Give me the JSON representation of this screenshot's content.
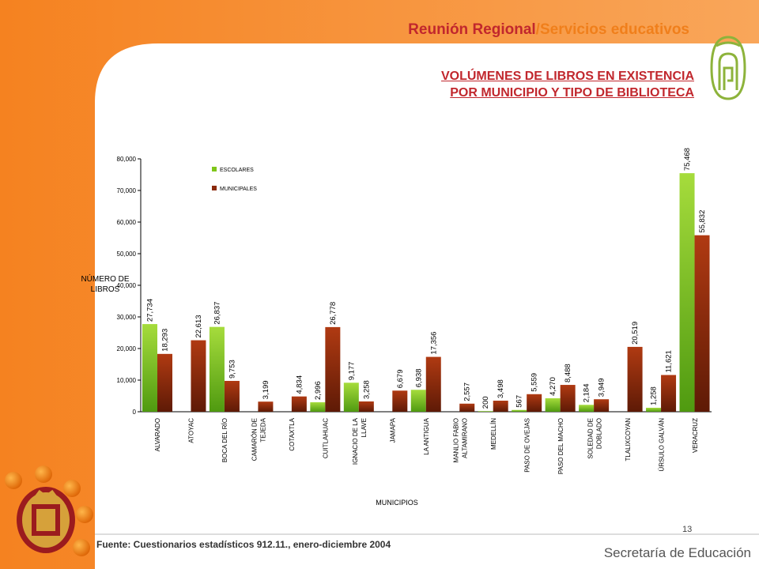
{
  "header": {
    "title_part1": "Reunión Regional",
    "title_sep": "/",
    "title_part2": "Servicios educativos"
  },
  "subtitle": {
    "line1": "VOLÚMENES DE LIBROS EN EXISTENCIA",
    "line2": "POR MUNICIPIO Y TIPO DE BIBLIOTECA"
  },
  "footer": {
    "source": "Fuente: Cuestionarios estadísticos 912.11., enero-diciembre 2004",
    "page_number": "13",
    "organization": "Secretaría de Educación"
  },
  "colors": {
    "brand_red": "#c1272d",
    "brand_orange": "#f07f1b",
    "series_escolares": "#7fc61a",
    "series_municipales": "#8b2a0d"
  },
  "chart_data": {
    "type": "bar",
    "ylabel": [
      "NÚMERO DE",
      "LIBROS"
    ],
    "xlabel": "MUNICIPIOS",
    "ylim": [
      0,
      80000
    ],
    "yticks": [
      "0",
      "10,000",
      "20,000",
      "30,000",
      "40,000",
      "50,000",
      "60,000",
      "70,000",
      "80,000"
    ],
    "legend_position": "top-left",
    "categories": [
      [
        "ALVARADO"
      ],
      [
        "ATOYAC"
      ],
      [
        "BOCA DEL RÍO"
      ],
      [
        "CAMARÓN DE",
        "TEJEDA"
      ],
      [
        "COTAXTLA"
      ],
      [
        "CUITLAHUAC"
      ],
      [
        "IGNACIO DE LA",
        "LLAVE"
      ],
      [
        "JAMAPA"
      ],
      [
        "LA ANTIGUA"
      ],
      [
        "MANLIO FABIO",
        "ALTAMIRANO"
      ],
      [
        "MEDELLÍN"
      ],
      [
        "PASO DE OVEJAS"
      ],
      [
        "PASO DEL MACHO"
      ],
      [
        "SOLEDAD DE",
        "DOBLADO"
      ],
      [
        "TLALIXCOYAN"
      ],
      [
        "ÚRSULO GALVÁN"
      ],
      [
        "VERACRUZ"
      ]
    ],
    "series": [
      {
        "name": "ESCOLARES",
        "values": [
          27734,
          null,
          26837,
          null,
          null,
          2996,
          9177,
          null,
          6938,
          null,
          200,
          567,
          4270,
          2184,
          null,
          1258,
          75468
        ],
        "labels": [
          "27,734",
          null,
          "26,837",
          null,
          null,
          "2,996",
          "9,177",
          null,
          "6,938",
          null,
          "200",
          "567",
          "4,270",
          "2,184",
          null,
          "1,258",
          "75,468"
        ]
      },
      {
        "name": "MUNICIPALES",
        "values": [
          18293,
          22613,
          9753,
          3199,
          4834,
          26778,
          3258,
          6679,
          17356,
          2557,
          3498,
          5559,
          8488,
          3949,
          20519,
          11621,
          55832
        ],
        "labels": [
          "18,293",
          "22,613",
          "9,753",
          "3,199",
          "4,834",
          "26,778",
          "3,258",
          "6,679",
          "17,356",
          "2,557",
          "3,498",
          "5,559",
          "8,488",
          "3,949",
          "20,519",
          "11,621",
          "55,832"
        ]
      }
    ]
  }
}
